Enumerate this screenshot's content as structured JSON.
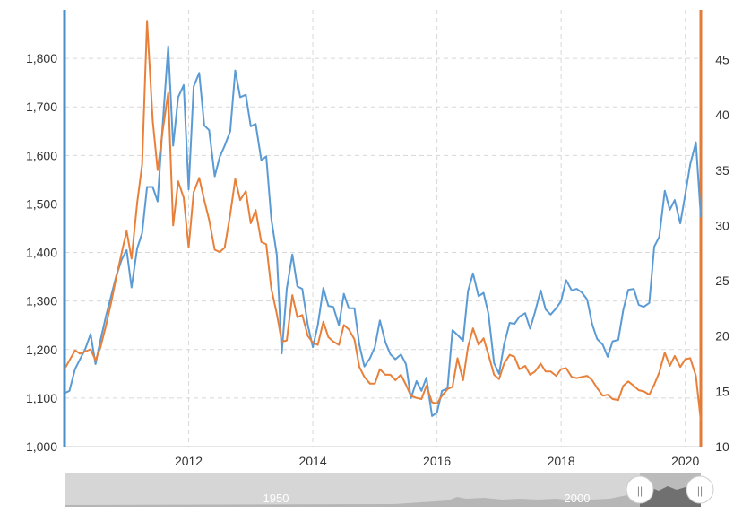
{
  "chart_data": {
    "type": "line",
    "title": "",
    "xlabel": "",
    "x_range": [
      2010.0,
      2020.25
    ],
    "x_ticks": [
      2012,
      2014,
      2016,
      2018,
      2020
    ],
    "y_left": {
      "range": [
        1000,
        1900
      ],
      "ticks": [
        1000,
        1100,
        1200,
        1300,
        1400,
        1500,
        1600,
        1700,
        1800
      ],
      "tick_labels": [
        "1,000",
        "1,100",
        "1,200",
        "1,300",
        "1,400",
        "1,500",
        "1,600",
        "1,700",
        "1,800"
      ],
      "color": "#4a90c8"
    },
    "y_right": {
      "range": [
        10,
        49.5
      ],
      "ticks": [
        10,
        15,
        20,
        25,
        30,
        35,
        40,
        45
      ],
      "tick_labels": [
        "10",
        "15",
        "20",
        "25",
        "30",
        "35",
        "40",
        "45"
      ],
      "color": "#e07b39"
    },
    "grid": true,
    "series": [
      {
        "axis": "left",
        "color": "#5b9bd5",
        "points": [
          [
            2010.0,
            1110
          ],
          [
            2010.08,
            1115
          ],
          [
            2010.17,
            1160
          ],
          [
            2010.25,
            1180
          ],
          [
            2010.33,
            1200
          ],
          [
            2010.42,
            1232
          ],
          [
            2010.5,
            1170
          ],
          [
            2010.58,
            1220
          ],
          [
            2010.67,
            1270
          ],
          [
            2010.75,
            1310
          ],
          [
            2010.83,
            1350
          ],
          [
            2010.92,
            1385
          ],
          [
            2011.0,
            1405
          ],
          [
            2011.08,
            1328
          ],
          [
            2011.17,
            1408
          ],
          [
            2011.25,
            1440
          ],
          [
            2011.33,
            1535
          ],
          [
            2011.42,
            1535
          ],
          [
            2011.5,
            1505
          ],
          [
            2011.58,
            1660
          ],
          [
            2011.67,
            1825
          ],
          [
            2011.75,
            1620
          ],
          [
            2011.83,
            1720
          ],
          [
            2011.92,
            1745
          ],
          [
            2012.0,
            1530
          ],
          [
            2012.08,
            1742
          ],
          [
            2012.17,
            1770
          ],
          [
            2012.25,
            1662
          ],
          [
            2012.33,
            1652
          ],
          [
            2012.42,
            1557
          ],
          [
            2012.5,
            1597
          ],
          [
            2012.58,
            1620
          ],
          [
            2012.67,
            1650
          ],
          [
            2012.75,
            1775
          ],
          [
            2012.83,
            1720
          ],
          [
            2012.92,
            1725
          ],
          [
            2013.0,
            1660
          ],
          [
            2013.08,
            1665
          ],
          [
            2013.17,
            1590
          ],
          [
            2013.25,
            1598
          ],
          [
            2013.33,
            1470
          ],
          [
            2013.42,
            1395
          ],
          [
            2013.5,
            1192
          ],
          [
            2013.58,
            1325
          ],
          [
            2013.67,
            1396
          ],
          [
            2013.75,
            1330
          ],
          [
            2013.83,
            1325
          ],
          [
            2013.92,
            1250
          ],
          [
            2014.0,
            1205
          ],
          [
            2014.08,
            1250
          ],
          [
            2014.17,
            1327
          ],
          [
            2014.25,
            1290
          ],
          [
            2014.33,
            1288
          ],
          [
            2014.42,
            1250
          ],
          [
            2014.5,
            1315
          ],
          [
            2014.58,
            1285
          ],
          [
            2014.67,
            1285
          ],
          [
            2014.75,
            1210
          ],
          [
            2014.83,
            1165
          ],
          [
            2014.92,
            1182
          ],
          [
            2015.0,
            1205
          ],
          [
            2015.08,
            1260
          ],
          [
            2015.17,
            1215
          ],
          [
            2015.25,
            1190
          ],
          [
            2015.33,
            1180
          ],
          [
            2015.42,
            1190
          ],
          [
            2015.5,
            1170
          ],
          [
            2015.58,
            1100
          ],
          [
            2015.67,
            1135
          ],
          [
            2015.75,
            1115
          ],
          [
            2015.83,
            1142
          ],
          [
            2015.92,
            1063
          ],
          [
            2016.0,
            1070
          ],
          [
            2016.08,
            1115
          ],
          [
            2016.17,
            1120
          ],
          [
            2016.25,
            1240
          ],
          [
            2016.33,
            1230
          ],
          [
            2016.42,
            1218
          ],
          [
            2016.5,
            1320
          ],
          [
            2016.58,
            1357
          ],
          [
            2016.67,
            1310
          ],
          [
            2016.75,
            1317
          ],
          [
            2016.83,
            1273
          ],
          [
            2016.92,
            1172
          ],
          [
            2017.0,
            1150
          ],
          [
            2017.08,
            1210
          ],
          [
            2017.17,
            1255
          ],
          [
            2017.25,
            1253
          ],
          [
            2017.33,
            1268
          ],
          [
            2017.42,
            1275
          ],
          [
            2017.5,
            1243
          ],
          [
            2017.58,
            1278
          ],
          [
            2017.67,
            1322
          ],
          [
            2017.75,
            1283
          ],
          [
            2017.83,
            1272
          ],
          [
            2017.92,
            1285
          ],
          [
            2018.0,
            1300
          ],
          [
            2018.08,
            1343
          ],
          [
            2018.17,
            1322
          ],
          [
            2018.25,
            1325
          ],
          [
            2018.33,
            1318
          ],
          [
            2018.42,
            1303
          ],
          [
            2018.5,
            1252
          ],
          [
            2018.58,
            1222
          ],
          [
            2018.67,
            1210
          ],
          [
            2018.75,
            1185
          ],
          [
            2018.83,
            1217
          ],
          [
            2018.92,
            1220
          ],
          [
            2019.0,
            1281
          ],
          [
            2019.08,
            1323
          ],
          [
            2019.17,
            1325
          ],
          [
            2019.25,
            1292
          ],
          [
            2019.33,
            1288
          ],
          [
            2019.42,
            1296
          ],
          [
            2019.5,
            1412
          ],
          [
            2019.58,
            1432
          ],
          [
            2019.67,
            1527
          ],
          [
            2019.75,
            1488
          ],
          [
            2019.83,
            1508
          ],
          [
            2019.92,
            1460
          ],
          [
            2020.0,
            1520
          ],
          [
            2020.08,
            1582
          ],
          [
            2020.17,
            1627
          ],
          [
            2020.25,
            1473
          ]
        ]
      },
      {
        "axis": "right",
        "color": "#e8803a",
        "points": [
          [
            2010.0,
            17.0
          ],
          [
            2010.08,
            17.8
          ],
          [
            2010.17,
            18.7
          ],
          [
            2010.25,
            18.4
          ],
          [
            2010.33,
            18.6
          ],
          [
            2010.42,
            18.8
          ],
          [
            2010.5,
            17.8
          ],
          [
            2010.58,
            19.0
          ],
          [
            2010.67,
            21.0
          ],
          [
            2010.75,
            23.0
          ],
          [
            2010.83,
            25.2
          ],
          [
            2010.92,
            27.5
          ],
          [
            2011.0,
            29.5
          ],
          [
            2011.08,
            27.0
          ],
          [
            2011.17,
            32.0
          ],
          [
            2011.25,
            35.5
          ],
          [
            2011.33,
            48.5
          ],
          [
            2011.42,
            39.5
          ],
          [
            2011.5,
            35.0
          ],
          [
            2011.58,
            38.5
          ],
          [
            2011.67,
            42.0
          ],
          [
            2011.75,
            30.0
          ],
          [
            2011.83,
            34.0
          ],
          [
            2011.92,
            32.5
          ],
          [
            2012.0,
            28.0
          ],
          [
            2012.08,
            33.0
          ],
          [
            2012.17,
            34.3
          ],
          [
            2012.25,
            32.3
          ],
          [
            2012.33,
            30.5
          ],
          [
            2012.42,
            27.8
          ],
          [
            2012.5,
            27.6
          ],
          [
            2012.58,
            28.0
          ],
          [
            2012.67,
            31.0
          ],
          [
            2012.75,
            34.2
          ],
          [
            2012.83,
            32.3
          ],
          [
            2012.92,
            33.1
          ],
          [
            2013.0,
            30.2
          ],
          [
            2013.08,
            31.4
          ],
          [
            2013.17,
            28.5
          ],
          [
            2013.25,
            28.3
          ],
          [
            2013.33,
            24.3
          ],
          [
            2013.42,
            22.0
          ],
          [
            2013.5,
            19.5
          ],
          [
            2013.58,
            19.6
          ],
          [
            2013.67,
            23.7
          ],
          [
            2013.75,
            21.7
          ],
          [
            2013.83,
            21.9
          ],
          [
            2013.92,
            20.0
          ],
          [
            2014.0,
            19.4
          ],
          [
            2014.08,
            19.2
          ],
          [
            2014.17,
            21.3
          ],
          [
            2014.25,
            19.9
          ],
          [
            2014.33,
            19.5
          ],
          [
            2014.42,
            19.2
          ],
          [
            2014.5,
            21.0
          ],
          [
            2014.58,
            20.6
          ],
          [
            2014.67,
            19.7
          ],
          [
            2014.75,
            17.2
          ],
          [
            2014.83,
            16.3
          ],
          [
            2014.92,
            15.7
          ],
          [
            2015.0,
            15.7
          ],
          [
            2015.08,
            17.0
          ],
          [
            2015.17,
            16.5
          ],
          [
            2015.25,
            16.5
          ],
          [
            2015.33,
            16.0
          ],
          [
            2015.42,
            16.5
          ],
          [
            2015.5,
            15.6
          ],
          [
            2015.58,
            14.6
          ],
          [
            2015.67,
            14.4
          ],
          [
            2015.75,
            14.3
          ],
          [
            2015.83,
            15.5
          ],
          [
            2015.92,
            14.0
          ],
          [
            2016.0,
            13.9
          ],
          [
            2016.08,
            14.6
          ],
          [
            2016.17,
            15.2
          ],
          [
            2016.25,
            15.4
          ],
          [
            2016.33,
            18.0
          ],
          [
            2016.42,
            16.0
          ],
          [
            2016.5,
            19.0
          ],
          [
            2016.58,
            20.7
          ],
          [
            2016.67,
            19.2
          ],
          [
            2016.75,
            19.8
          ],
          [
            2016.83,
            18.3
          ],
          [
            2016.92,
            16.5
          ],
          [
            2017.0,
            16.1
          ],
          [
            2017.08,
            17.5
          ],
          [
            2017.17,
            18.3
          ],
          [
            2017.25,
            18.1
          ],
          [
            2017.33,
            17.0
          ],
          [
            2017.42,
            17.3
          ],
          [
            2017.5,
            16.5
          ],
          [
            2017.58,
            16.8
          ],
          [
            2017.67,
            17.5
          ],
          [
            2017.75,
            16.8
          ],
          [
            2017.83,
            16.8
          ],
          [
            2017.92,
            16.4
          ],
          [
            2018.0,
            17.0
          ],
          [
            2018.08,
            17.1
          ],
          [
            2018.17,
            16.3
          ],
          [
            2018.25,
            16.2
          ],
          [
            2018.33,
            16.3
          ],
          [
            2018.42,
            16.4
          ],
          [
            2018.5,
            16.0
          ],
          [
            2018.58,
            15.3
          ],
          [
            2018.67,
            14.6
          ],
          [
            2018.75,
            14.7
          ],
          [
            2018.83,
            14.3
          ],
          [
            2018.92,
            14.2
          ],
          [
            2019.0,
            15.5
          ],
          [
            2019.08,
            15.9
          ],
          [
            2019.17,
            15.5
          ],
          [
            2019.25,
            15.1
          ],
          [
            2019.33,
            15.0
          ],
          [
            2019.42,
            14.7
          ],
          [
            2019.5,
            15.6
          ],
          [
            2019.58,
            16.7
          ],
          [
            2019.67,
            18.5
          ],
          [
            2019.75,
            17.3
          ],
          [
            2019.83,
            18.2
          ],
          [
            2019.92,
            17.2
          ],
          [
            2020.0,
            17.9
          ],
          [
            2020.08,
            18.0
          ],
          [
            2020.17,
            16.4
          ],
          [
            2020.25,
            12.3
          ]
        ]
      }
    ],
    "navigator": {
      "labels": [
        "1950",
        "2000"
      ],
      "handle_glyph": "||"
    }
  }
}
